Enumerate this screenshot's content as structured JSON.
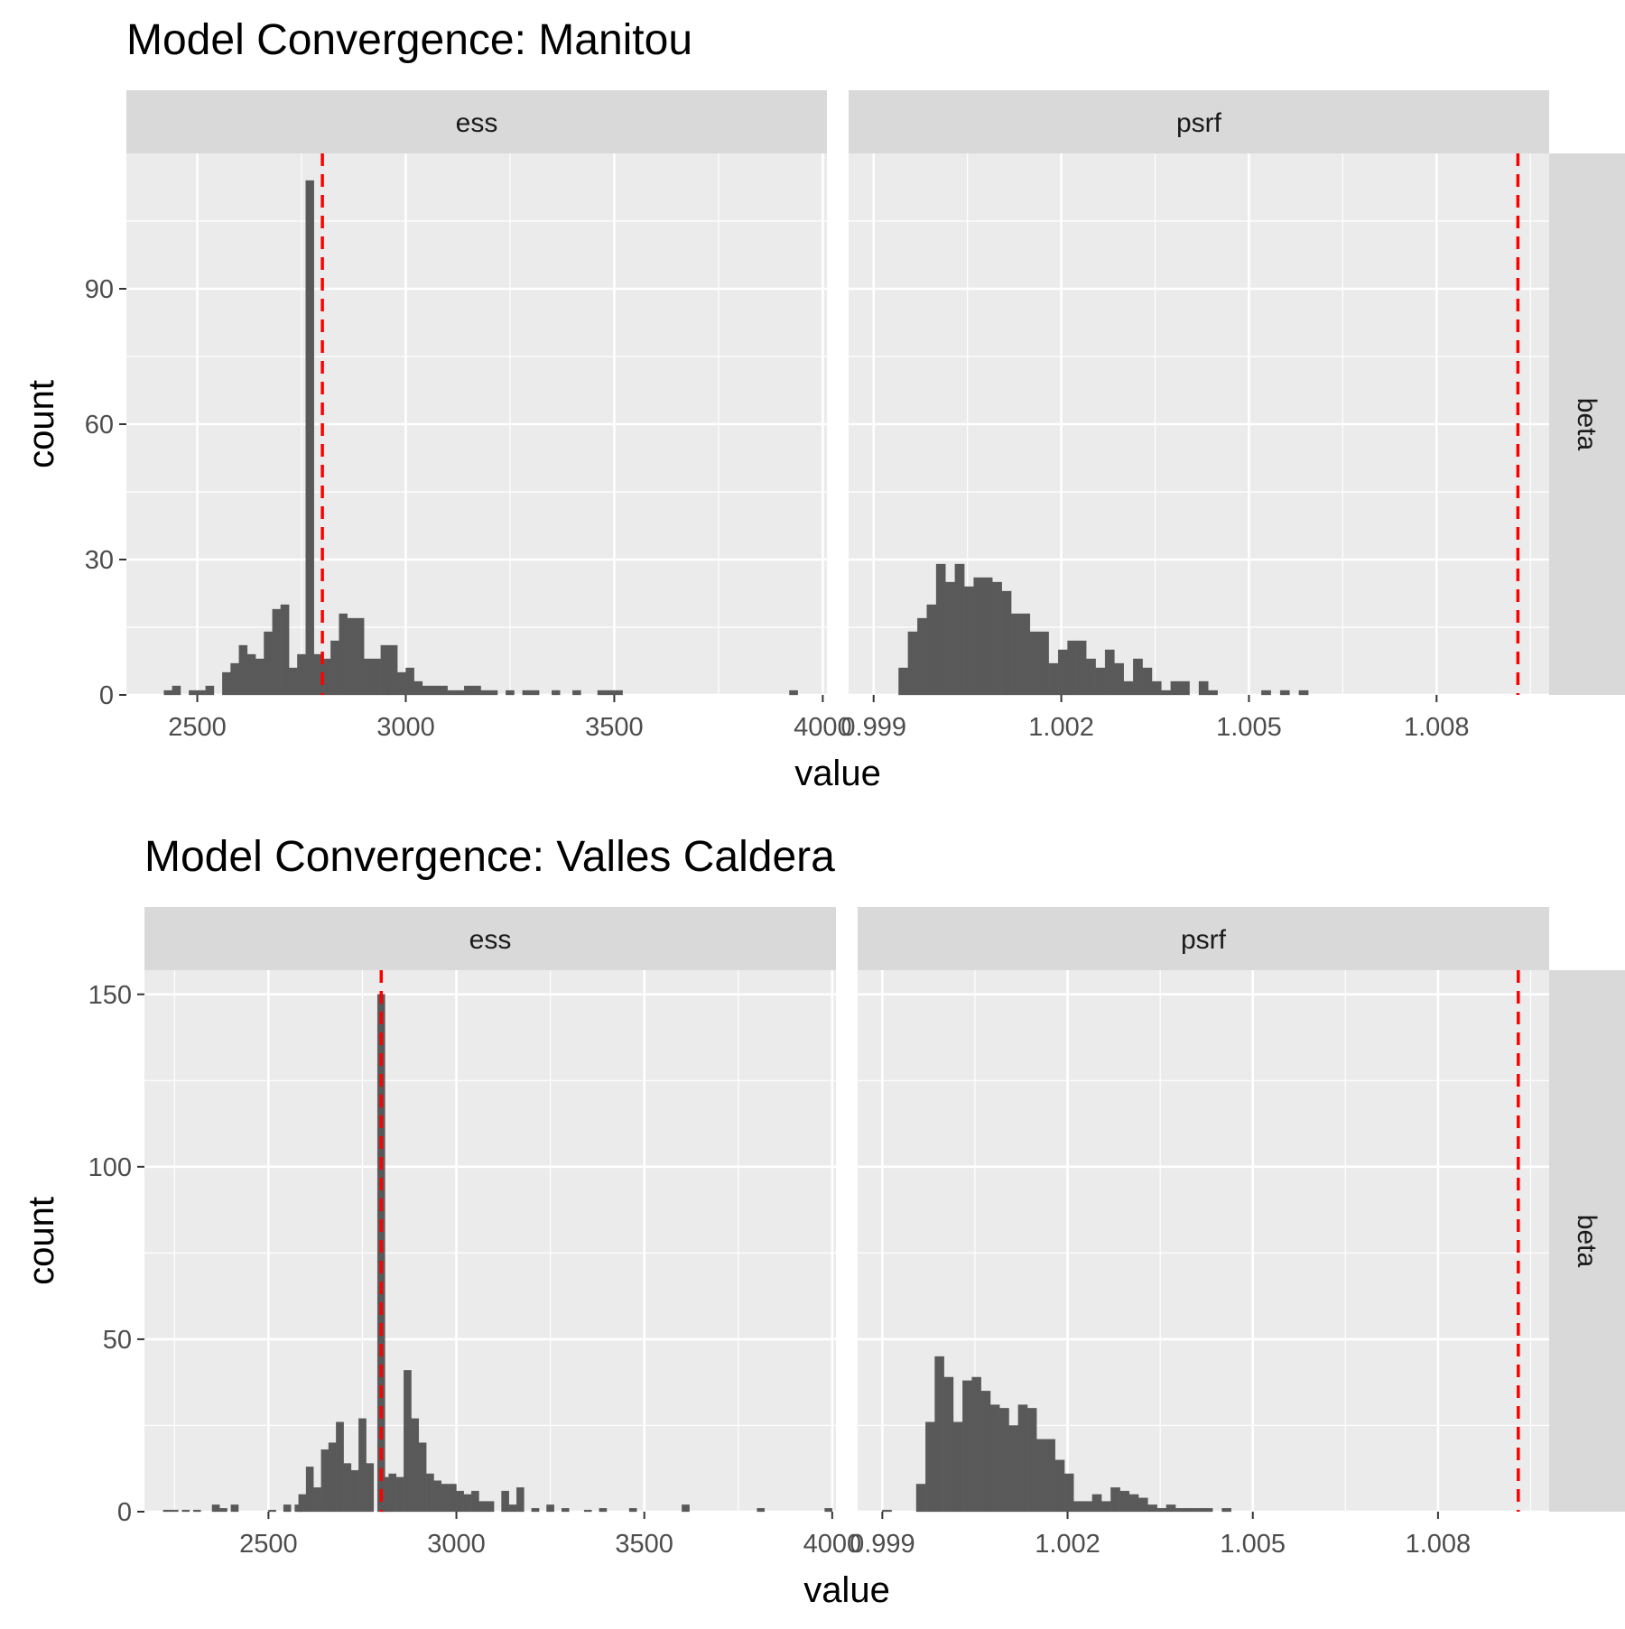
{
  "chart_data": [
    {
      "type": "bar",
      "title": "Model Convergence: Manitou",
      "xlabel": "value",
      "ylabel": "count",
      "facet_row": "beta",
      "ylim": [
        0,
        120
      ],
      "yticks": [
        0,
        30,
        60,
        90
      ],
      "panels": [
        {
          "strip": "ess",
          "xlim": [
            2330,
            4010
          ],
          "xticks": [
            2500,
            3000,
            3500,
            4000
          ],
          "threshold": 2800,
          "bin_width": 20,
          "bins": [
            [
              2420,
              1
            ],
            [
              2440,
              2
            ],
            [
              2480,
              1
            ],
            [
              2500,
              1
            ],
            [
              2520,
              2
            ],
            [
              2560,
              5
            ],
            [
              2580,
              7
            ],
            [
              2600,
              11
            ],
            [
              2620,
              9
            ],
            [
              2640,
              8
            ],
            [
              2660,
              14
            ],
            [
              2680,
              19
            ],
            [
              2700,
              20
            ],
            [
              2720,
              6
            ],
            [
              2740,
              9
            ],
            [
              2760,
              114
            ],
            [
              2780,
              9
            ],
            [
              2800,
              8
            ],
            [
              2820,
              12
            ],
            [
              2840,
              18
            ],
            [
              2860,
              17
            ],
            [
              2880,
              17
            ],
            [
              2900,
              8
            ],
            [
              2920,
              8
            ],
            [
              2940,
              11
            ],
            [
              2960,
              11
            ],
            [
              2980,
              5
            ],
            [
              3000,
              6
            ],
            [
              3020,
              3
            ],
            [
              3040,
              2
            ],
            [
              3060,
              2
            ],
            [
              3080,
              2
            ],
            [
              3100,
              1
            ],
            [
              3120,
              1
            ],
            [
              3140,
              2
            ],
            [
              3160,
              2
            ],
            [
              3180,
              1
            ],
            [
              3200,
              1
            ],
            [
              3240,
              1
            ],
            [
              3280,
              1
            ],
            [
              3300,
              1
            ],
            [
              3350,
              1
            ],
            [
              3400,
              1
            ],
            [
              3460,
              1
            ],
            [
              3480,
              1
            ],
            [
              3500,
              1
            ],
            [
              3920,
              1
            ]
          ]
        },
        {
          "strip": "psrf",
          "xlim": [
            0.9986,
            1.0098
          ],
          "xticks": [
            0.999,
            1.002,
            1.005,
            1.008
          ],
          "xticklabels": [
            "0.999",
            "1.002",
            "1.005",
            "1.008"
          ],
          "threshold": 1.0093,
          "bin_width": 0.00015,
          "bins": [
            [
              0.9994,
              6
            ],
            [
              0.99955,
              14
            ],
            [
              0.9997,
              17
            ],
            [
              0.99985,
              20
            ],
            [
              1.0,
              29
            ],
            [
              1.00015,
              25
            ],
            [
              1.0003,
              29
            ],
            [
              1.00045,
              24
            ],
            [
              1.0006,
              26
            ],
            [
              1.00075,
              26
            ],
            [
              1.0009,
              25
            ],
            [
              1.00105,
              23
            ],
            [
              1.0012,
              18
            ],
            [
              1.00135,
              18
            ],
            [
              1.0015,
              14
            ],
            [
              1.00165,
              14
            ],
            [
              1.0018,
              7
            ],
            [
              1.00195,
              10
            ],
            [
              1.0021,
              12
            ],
            [
              1.00225,
              12
            ],
            [
              1.0024,
              8
            ],
            [
              1.00255,
              6
            ],
            [
              1.0027,
              10
            ],
            [
              1.00285,
              7
            ],
            [
              1.003,
              3
            ],
            [
              1.00315,
              8
            ],
            [
              1.0033,
              6
            ],
            [
              1.00345,
              3
            ],
            [
              1.0036,
              1
            ],
            [
              1.00375,
              3
            ],
            [
              1.0039,
              3
            ],
            [
              1.0042,
              3
            ],
            [
              1.00435,
              1
            ],
            [
              1.0052,
              1
            ],
            [
              1.0055,
              1
            ],
            [
              1.0058,
              1
            ]
          ]
        }
      ]
    },
    {
      "type": "bar",
      "title": "Model Convergence: Valles Caldera",
      "xlabel": "value",
      "ylabel": "count",
      "facet_row": "beta",
      "ylim": [
        0,
        157
      ],
      "yticks": [
        0,
        50,
        100,
        150
      ],
      "panels": [
        {
          "strip": "ess",
          "xlim": [
            2170,
            4010
          ],
          "xticks": [
            2500,
            3000,
            3500,
            4000
          ],
          "threshold": 2800,
          "bin_width": 20,
          "bins": [
            [
              2220,
              0.5
            ],
            [
              2240,
              0.5
            ],
            [
              2270,
              0.5
            ],
            [
              2300,
              0.5
            ],
            [
              2350,
              2
            ],
            [
              2370,
              1
            ],
            [
              2400,
              2
            ],
            [
              2500,
              0.5
            ],
            [
              2540,
              2
            ],
            [
              2570,
              2
            ],
            [
              2580,
              5
            ],
            [
              2600,
              13
            ],
            [
              2620,
              7
            ],
            [
              2640,
              18
            ],
            [
              2660,
              20
            ],
            [
              2680,
              26
            ],
            [
              2700,
              14
            ],
            [
              2720,
              12
            ],
            [
              2740,
              27
            ],
            [
              2760,
              14
            ],
            [
              2790,
              150
            ],
            [
              2800,
              10
            ],
            [
              2820,
              11
            ],
            [
              2840,
              10
            ],
            [
              2860,
              41
            ],
            [
              2880,
              27
            ],
            [
              2900,
              20
            ],
            [
              2920,
              11
            ],
            [
              2940,
              9
            ],
            [
              2960,
              8
            ],
            [
              2980,
              8
            ],
            [
              3000,
              6
            ],
            [
              3020,
              5
            ],
            [
              3040,
              6
            ],
            [
              3060,
              3
            ],
            [
              3080,
              3
            ],
            [
              3120,
              6
            ],
            [
              3140,
              2
            ],
            [
              3160,
              7
            ],
            [
              3200,
              1
            ],
            [
              3240,
              2
            ],
            [
              3280,
              1
            ],
            [
              3340,
              0.5
            ],
            [
              3380,
              1
            ],
            [
              3460,
              1
            ],
            [
              3600,
              2
            ],
            [
              3800,
              1
            ],
            [
              3980,
              1
            ]
          ]
        },
        {
          "strip": "psrf",
          "xlim": [
            0.9986,
            1.0098
          ],
          "xticks": [
            0.999,
            1.002,
            1.005,
            1.008
          ],
          "xticklabels": [
            "0.999",
            "1.002",
            "1.005",
            "1.008"
          ],
          "threshold": 1.0093,
          "bin_width": 0.00015,
          "bins": [
            [
              0.999,
              0.5
            ],
            [
              0.99955,
              8
            ],
            [
              0.9997,
              26
            ],
            [
              0.99985,
              45
            ],
            [
              1.0,
              39
            ],
            [
              1.00015,
              26
            ],
            [
              1.0003,
              38
            ],
            [
              1.00045,
              39
            ],
            [
              1.0006,
              35
            ],
            [
              1.00075,
              31
            ],
            [
              1.0009,
              30
            ],
            [
              1.00105,
              25
            ],
            [
              1.0012,
              31
            ],
            [
              1.00135,
              30
            ],
            [
              1.0015,
              21
            ],
            [
              1.00165,
              21
            ],
            [
              1.0018,
              15
            ],
            [
              1.00195,
              11
            ],
            [
              1.0021,
              3
            ],
            [
              1.00225,
              3
            ],
            [
              1.0024,
              5
            ],
            [
              1.00255,
              3
            ],
            [
              1.0027,
              7
            ],
            [
              1.00285,
              6
            ],
            [
              1.003,
              5
            ],
            [
              1.00315,
              4
            ],
            [
              1.0033,
              2
            ],
            [
              1.00345,
              1
            ],
            [
              1.0036,
              2
            ],
            [
              1.00375,
              1
            ],
            [
              1.0039,
              1
            ],
            [
              1.00405,
              1
            ],
            [
              1.0042,
              1
            ],
            [
              1.0045,
              1
            ]
          ]
        }
      ]
    }
  ]
}
